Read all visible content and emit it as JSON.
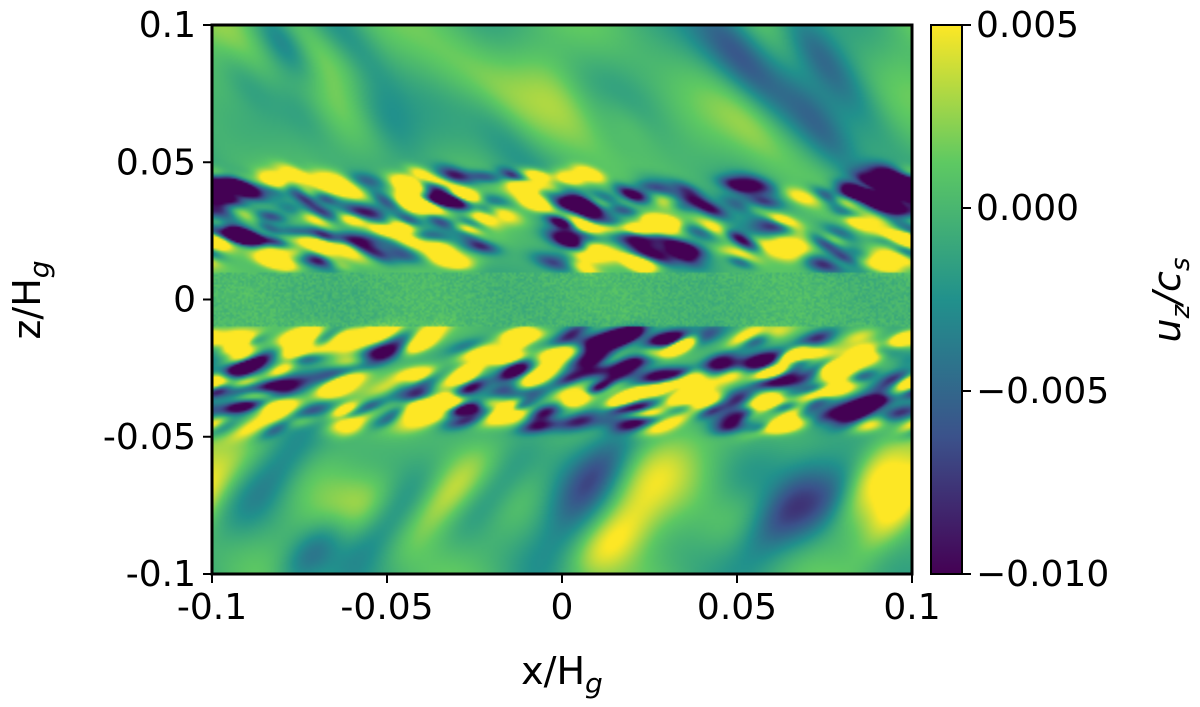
{
  "chart_data": {
    "type": "heatmap",
    "title": "",
    "xlabel": {
      "base": "x/H",
      "sub": "g"
    },
    "ylabel": {
      "base": "z/H",
      "sub": "g"
    },
    "xlim": [
      -0.1,
      0.1
    ],
    "ylim": [
      -0.1,
      0.1
    ],
    "xticks": [
      {
        "value": -0.1,
        "label": "-0.1"
      },
      {
        "value": -0.05,
        "label": "-0.05"
      },
      {
        "value": 0,
        "label": "0"
      },
      {
        "value": 0.05,
        "label": "0.05"
      },
      {
        "value": 0.1,
        "label": "0.1"
      }
    ],
    "yticks": [
      {
        "value": 0.1,
        "label": "0.1"
      },
      {
        "value": 0.05,
        "label": "0.05"
      },
      {
        "value": 0,
        "label": "0"
      },
      {
        "value": -0.05,
        "label": "-0.05"
      },
      {
        "value": -0.1,
        "label": "-0.1"
      }
    ],
    "grid": false,
    "field_description": "vertical gas velocity; large-scale stripes at |z|>0.05, small eddies for 0.01<|z|<0.05, quiet mid-plane",
    "colorbar": {
      "label": {
        "base": "u",
        "sub1": "z",
        "mid": "/c",
        "sub2": "s"
      },
      "range": [
        -0.01,
        0.005
      ],
      "colormap": "viridis",
      "ticks": [
        {
          "value": 0.005,
          "label": "0.005"
        },
        {
          "value": 0.0,
          "label": "0.000"
        },
        {
          "value": -0.005,
          "label": "−0.005"
        },
        {
          "value": -0.01,
          "label": "−0.010"
        }
      ],
      "colors": [
        "#440154",
        "#3b528b",
        "#21918c",
        "#5ec962",
        "#fde725"
      ]
    }
  }
}
